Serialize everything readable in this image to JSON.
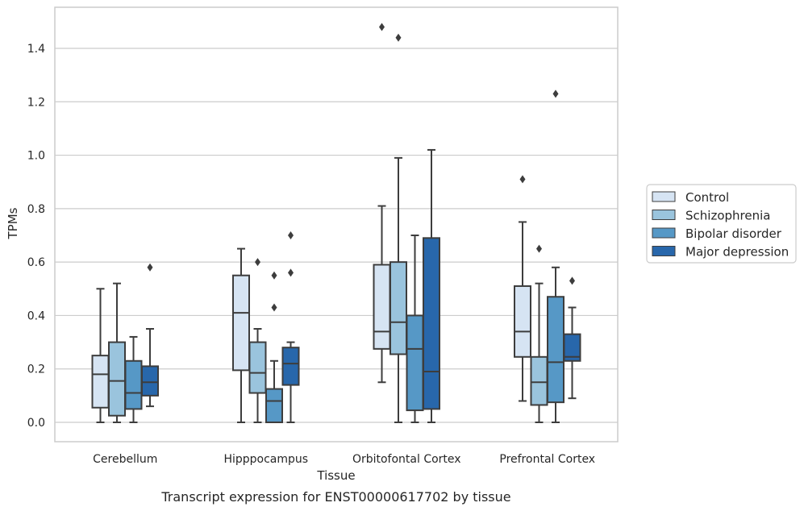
{
  "caption": "Transcript expression for ENST00000617702 by tissue",
  "chart_data": {
    "type": "box",
    "xlabel": "Tissue",
    "ylabel": "TPMs",
    "ylim": [
      -0.07,
      1.56
    ],
    "yticks": [
      0.0,
      0.2,
      0.4,
      0.6,
      0.8,
      1.0,
      1.2,
      1.4
    ],
    "grid": "horizontal",
    "legend_position": "right",
    "categories": [
      "Cerebellum",
      "Hipppocampus",
      "Orbitofontal Cortex",
      "Prefrontal Cortex"
    ],
    "series": [
      {
        "name": "Control",
        "color": "#d6e4f3",
        "boxes": [
          {
            "whislo": 0.0,
            "q1": 0.055,
            "med": 0.18,
            "q3": 0.25,
            "whishi": 0.5,
            "fliers": []
          },
          {
            "whislo": 0.0,
            "q1": 0.195,
            "med": 0.41,
            "q3": 0.55,
            "whishi": 0.65,
            "fliers": []
          },
          {
            "whislo": 0.15,
            "q1": 0.275,
            "med": 0.34,
            "q3": 0.59,
            "whishi": 0.81,
            "fliers": [
              1.48
            ]
          },
          {
            "whislo": 0.08,
            "q1": 0.245,
            "med": 0.34,
            "q3": 0.51,
            "whishi": 0.75,
            "fliers": [
              0.91
            ]
          }
        ]
      },
      {
        "name": "Schizophrenia",
        "color": "#9ac4dd",
        "boxes": [
          {
            "whislo": 0.0,
            "q1": 0.025,
            "med": 0.155,
            "q3": 0.3,
            "whishi": 0.52,
            "fliers": []
          },
          {
            "whislo": 0.0,
            "q1": 0.11,
            "med": 0.185,
            "q3": 0.3,
            "whishi": 0.35,
            "fliers": [
              0.6
            ]
          },
          {
            "whislo": 0.0,
            "q1": 0.255,
            "med": 0.375,
            "q3": 0.6,
            "whishi": 0.99,
            "fliers": [
              1.44
            ]
          },
          {
            "whislo": 0.0,
            "q1": 0.065,
            "med": 0.15,
            "q3": 0.245,
            "whishi": 0.52,
            "fliers": [
              0.65
            ]
          }
        ]
      },
      {
        "name": "Bipolar disorder",
        "color": "#5698c6",
        "boxes": [
          {
            "whislo": 0.0,
            "q1": 0.05,
            "med": 0.11,
            "q3": 0.23,
            "whishi": 0.32,
            "fliers": []
          },
          {
            "whislo": 0.0,
            "q1": 0.0,
            "med": 0.08,
            "q3": 0.125,
            "whishi": 0.23,
            "fliers": [
              0.43,
              0.55
            ]
          },
          {
            "whislo": 0.0,
            "q1": 0.045,
            "med": 0.275,
            "q3": 0.4,
            "whishi": 0.7,
            "fliers": []
          },
          {
            "whislo": 0.0,
            "q1": 0.075,
            "med": 0.225,
            "q3": 0.47,
            "whishi": 0.58,
            "fliers": [
              1.23
            ]
          }
        ]
      },
      {
        "name": "Major depression",
        "color": "#2867ab",
        "boxes": [
          {
            "whislo": 0.06,
            "q1": 0.1,
            "med": 0.15,
            "q3": 0.21,
            "whishi": 0.35,
            "fliers": [
              0.58
            ]
          },
          {
            "whislo": 0.0,
            "q1": 0.14,
            "med": 0.22,
            "q3": 0.28,
            "whishi": 0.3,
            "fliers": [
              0.56,
              0.7
            ]
          },
          {
            "whislo": 0.0,
            "q1": 0.05,
            "med": 0.19,
            "q3": 0.69,
            "whishi": 1.02,
            "fliers": []
          },
          {
            "whislo": 0.09,
            "q1": 0.23,
            "med": 0.245,
            "q3": 0.33,
            "whishi": 0.43,
            "fliers": [
              0.53
            ]
          }
        ]
      }
    ]
  }
}
